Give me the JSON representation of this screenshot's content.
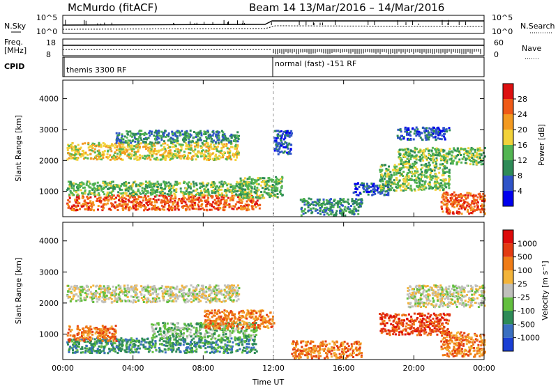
{
  "header": {
    "station": "McMurdo (fitACF)",
    "beam_date": "Beam 14  13/Mar/2016 – 14/Mar/2016"
  },
  "strip_labels": {
    "nsky": "N.Sky",
    "nsky_hi": "10^5",
    "nsky_lo": "10^0",
    "nsearch": "N.Search",
    "nsearch_hi": "10^5",
    "nsearch_lo": "10^0",
    "freq": "Freq.",
    "mhz": "[MHz]",
    "freq_hi": "18",
    "freq_lo": "8",
    "nave": "Nave",
    "nave_hi": "60",
    "nave_lo": "0",
    "cpid": "CPID"
  },
  "cpid_segments": {
    "first": "themis 3300 RF",
    "second": "normal (fast) -151 RF"
  },
  "chart_data": [
    {
      "type": "heatmap",
      "name": "power-panel",
      "ylabel": "Slant Range [km]",
      "xlabel": "",
      "x_ticks": [
        "00:00",
        "04:00",
        "08:00",
        "12:00",
        "16:00",
        "20:00",
        "00:00"
      ],
      "x_range_hours": [
        0,
        24
      ],
      "y_ticks": [
        "1000",
        "2000",
        "3000",
        "4000"
      ],
      "y_range_km": [
        180,
        4600
      ],
      "colorbar_label": "Power [dB]",
      "colorbar_ticks": [
        "4",
        "8",
        "12",
        "16",
        "20",
        "24",
        "28"
      ],
      "colorbar_colors": [
        "#0000ee",
        "#2f54c8",
        "#2e8b57",
        "#53b552",
        "#f2d23a",
        "#f39a21",
        "#ef5a17",
        "#dd1010"
      ],
      "blobs": [
        {
          "t0": 0.2,
          "t1": 11.2,
          "r0": 420,
          "r1": 900,
          "level": 6
        },
        {
          "t0": 0.2,
          "t1": 10.8,
          "r0": 900,
          "r1": 1350,
          "level": 3
        },
        {
          "t0": 0.2,
          "t1": 10.0,
          "r0": 2050,
          "r1": 2600,
          "level": 4
        },
        {
          "t0": 3.0,
          "t1": 10.0,
          "r0": 2600,
          "r1": 3000,
          "level": 2
        },
        {
          "t0": 10.0,
          "t1": 12.5,
          "r0": 800,
          "r1": 1500,
          "level": 3
        },
        {
          "t0": 12.0,
          "t1": 13.0,
          "r0": 2200,
          "r1": 3000,
          "level": 1
        },
        {
          "t0": 13.5,
          "t1": 17.0,
          "r0": 250,
          "r1": 800,
          "level": 2
        },
        {
          "t0": 16.5,
          "t1": 18.5,
          "r0": 900,
          "r1": 1300,
          "level": 1
        },
        {
          "t0": 18.0,
          "t1": 22.0,
          "r0": 1050,
          "r1": 1900,
          "level": 3
        },
        {
          "t0": 19.0,
          "t1": 24.0,
          "r0": 1900,
          "r1": 2450,
          "level": 3
        },
        {
          "t0": 19.0,
          "t1": 22.0,
          "r0": 2700,
          "r1": 3100,
          "level": 1
        },
        {
          "t0": 21.5,
          "t1": 24.0,
          "r0": 300,
          "r1": 1000,
          "level": 6
        }
      ]
    },
    {
      "type": "heatmap",
      "name": "velocity-panel",
      "ylabel": "Slant Range [km]",
      "xlabel": "Time UT",
      "x_ticks": [
        "00:00",
        "04:00",
        "08:00",
        "12:00",
        "16:00",
        "20:00",
        "00:00"
      ],
      "x_range_hours": [
        0,
        24
      ],
      "y_ticks": [
        "1000",
        "2000",
        "3000",
        "4000"
      ],
      "y_range_km": [
        180,
        4600
      ],
      "colorbar_label": "Velocity [m s⁻¹]",
      "colorbar_ticks": [
        "1000",
        "500",
        "100",
        "25",
        "-25",
        "-100",
        "-500",
        "-1000"
      ],
      "colorbar_colors": [
        "#1a3fd4",
        "#3a6fc0",
        "#2e8b57",
        "#63bf3f",
        "#c0c0bc",
        "#f3b43a",
        "#ef7c17",
        "#e33b12",
        "#dd0a0a"
      ],
      "blobs": [
        {
          "t0": 0.2,
          "t1": 11.0,
          "r0": 420,
          "r1": 900,
          "level": 2
        },
        {
          "t0": 0.2,
          "t1": 3.0,
          "r0": 800,
          "r1": 1300,
          "level": 6
        },
        {
          "t0": 5.0,
          "t1": 11.0,
          "r0": 900,
          "r1": 1400,
          "level": 3
        },
        {
          "t0": 0.2,
          "t1": 10.0,
          "r0": 2050,
          "r1": 2600,
          "level": 4
        },
        {
          "t0": 8.0,
          "t1": 12.0,
          "r0": 1200,
          "r1": 1800,
          "level": 6
        },
        {
          "t0": 13.0,
          "t1": 17.0,
          "r0": 250,
          "r1": 800,
          "level": 6
        },
        {
          "t0": 18.0,
          "t1": 22.0,
          "r0": 1000,
          "r1": 1700,
          "level": 7
        },
        {
          "t0": 19.5,
          "t1": 24.0,
          "r0": 1900,
          "r1": 2600,
          "level": 4
        },
        {
          "t0": 21.5,
          "t1": 24.0,
          "r0": 300,
          "r1": 1100,
          "level": 6
        }
      ]
    }
  ]
}
